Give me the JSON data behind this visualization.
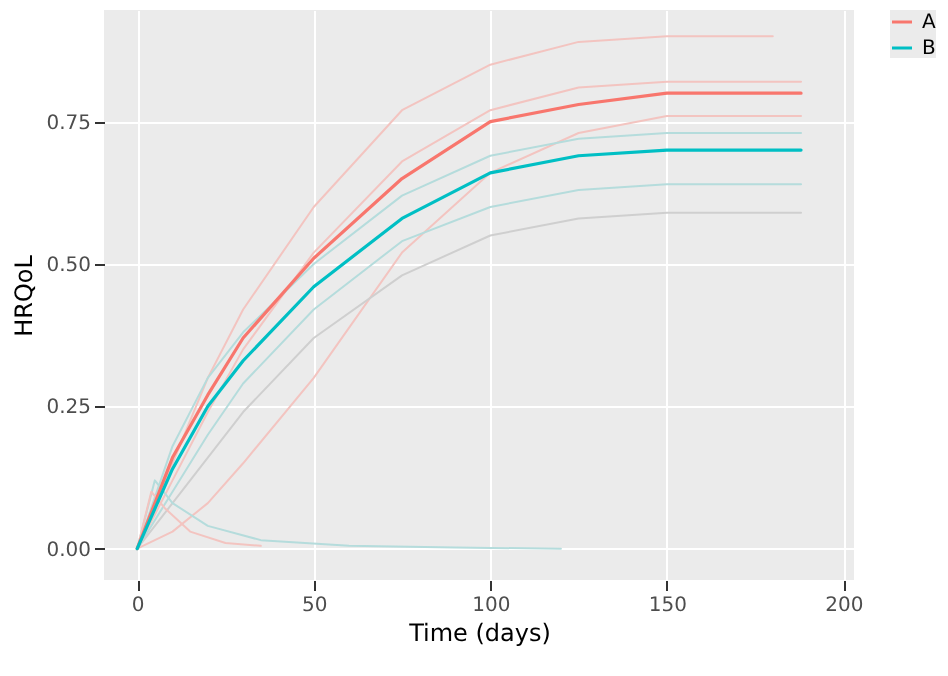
{
  "chart_data": {
    "type": "line",
    "xlabel": "Time (days)",
    "ylabel": "HRQoL",
    "xlim": [
      -9.4,
      203
    ],
    "ylim": [
      -0.055,
      0.946
    ],
    "xticks": [
      0,
      50,
      100,
      150,
      200
    ],
    "yticks": [
      {
        "value": 0,
        "label": "0.00"
      },
      {
        "value": 0.25,
        "label": "0.25"
      },
      {
        "value": 0.5,
        "label": "0.50"
      },
      {
        "value": 0.75,
        "label": "0.75"
      }
    ],
    "grid": true,
    "legend": "right",
    "series": [
      {
        "color": "#f3c4c0",
        "x": [
          0,
          10,
          20,
          30,
          50,
          75,
          100,
          125,
          150,
          180
        ],
        "values": [
          0,
          0.15,
          0.3,
          0.42,
          0.6,
          0.77,
          0.85,
          0.89,
          0.9,
          0.9
        ]
      },
      {
        "color": "#f3c4c0",
        "x": [
          0,
          10,
          20,
          30,
          50,
          75,
          100,
          125,
          150,
          188
        ],
        "values": [
          0,
          0.12,
          0.24,
          0.35,
          0.52,
          0.68,
          0.77,
          0.81,
          0.82,
          0.82
        ]
      },
      {
        "color": "#f3c4c0",
        "x": [
          0,
          10,
          20,
          30,
          50,
          75,
          100,
          125,
          150,
          188
        ],
        "values": [
          0,
          0.03,
          0.08,
          0.15,
          0.3,
          0.52,
          0.66,
          0.73,
          0.76,
          0.76
        ]
      },
      {
        "color": "#b5dcdc",
        "x": [
          0,
          10,
          20,
          30,
          50,
          75,
          100,
          125,
          150,
          188
        ],
        "values": [
          0,
          0.18,
          0.3,
          0.38,
          0.5,
          0.62,
          0.69,
          0.72,
          0.73,
          0.73
        ]
      },
      {
        "color": "#b5dcdc",
        "x": [
          0,
          10,
          20,
          30,
          50,
          75,
          100,
          125,
          150,
          188
        ],
        "values": [
          0,
          0.1,
          0.2,
          0.29,
          0.42,
          0.54,
          0.6,
          0.63,
          0.64,
          0.64
        ]
      },
      {
        "color": "#cfcfcf",
        "x": [
          0,
          10,
          20,
          30,
          50,
          75,
          100,
          125,
          150,
          188
        ],
        "values": [
          0,
          0.08,
          0.16,
          0.24,
          0.37,
          0.48,
          0.55,
          0.58,
          0.59,
          0.59
        ]
      },
      {
        "color": "#b5dcdc",
        "x": [
          0,
          5,
          10,
          20,
          35,
          60,
          90,
          120
        ],
        "values": [
          0,
          0.12,
          0.08,
          0.04,
          0.015,
          0.005,
          0.002,
          0
        ]
      },
      {
        "color": "#f3c4c0",
        "x": [
          0,
          4,
          8,
          15,
          25,
          35
        ],
        "values": [
          0,
          0.1,
          0.07,
          0.03,
          0.01,
          0.005
        ]
      },
      {
        "name": "A",
        "color": "#f8766d",
        "x": [
          0,
          10,
          20,
          30,
          50,
          75,
          100,
          125,
          150,
          188
        ],
        "values": [
          0,
          0.16,
          0.27,
          0.37,
          0.51,
          0.65,
          0.75,
          0.78,
          0.8,
          0.8
        ]
      },
      {
        "name": "B",
        "color": "#00bfc4",
        "x": [
          0,
          10,
          20,
          30,
          50,
          75,
          100,
          125,
          150,
          188
        ],
        "values": [
          0,
          0.14,
          0.25,
          0.33,
          0.46,
          0.58,
          0.66,
          0.69,
          0.7,
          0.7
        ]
      }
    ]
  }
}
